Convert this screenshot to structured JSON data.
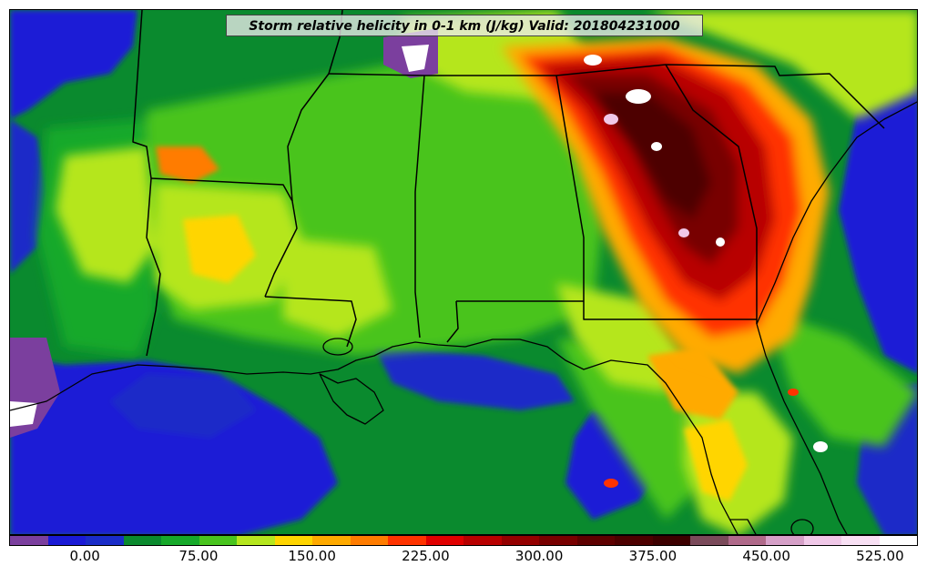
{
  "title": "Storm relative helicity in 0-1 km (J/kg) Valid: 201804231000",
  "colorbar": {
    "colors": [
      "#7b3f9e",
      "#1a1ad6",
      "#1a2cc8",
      "#0a8a2e",
      "#16a92a",
      "#48c41e",
      "#b5e61e",
      "#ffd500",
      "#ffaa00",
      "#ff7c00",
      "#ff3300",
      "#e00000",
      "#b80000",
      "#940000",
      "#780000",
      "#5e0000",
      "#4d0000",
      "#3d0000",
      "#7a4a5a",
      "#b06a8a",
      "#d6a0c8",
      "#f0c8e8",
      "#f8e0f4",
      "#ffffff"
    ],
    "tick_labels": [
      "0.00",
      "75.00",
      "150.00",
      "225.00",
      "300.00",
      "375.00",
      "450.00",
      "525.00"
    ],
    "tick_positions_index": [
      2,
      5,
      8,
      11,
      14,
      17,
      20,
      23
    ]
  }
}
